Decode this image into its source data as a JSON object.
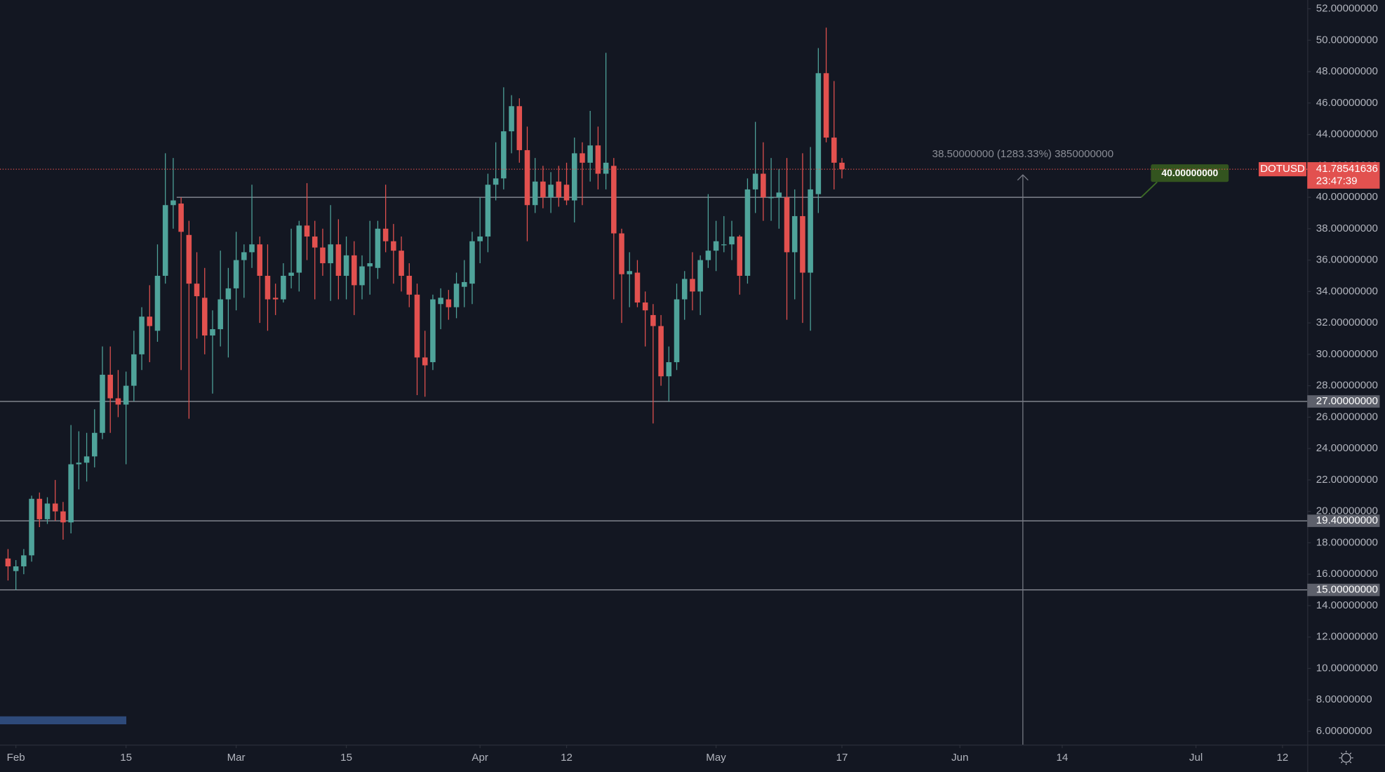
{
  "chart_data": {
    "type": "candlestick",
    "symbol": "DOTUSD",
    "up_color": "#4fa39a",
    "down_color": "#e2514f",
    "x": [
      -1,
      0,
      1,
      2,
      3,
      4,
      5,
      6,
      7,
      8,
      9,
      10,
      11,
      12,
      13,
      14,
      15,
      16,
      17,
      18,
      19,
      20,
      21,
      22,
      23,
      24,
      25,
      26,
      27,
      28,
      29,
      30,
      31,
      32,
      33,
      34,
      35,
      36,
      37,
      38,
      39,
      40,
      41,
      42,
      43,
      44,
      45,
      46,
      47,
      48,
      49,
      50,
      51,
      52,
      53,
      54,
      55,
      56,
      57,
      58,
      59,
      60,
      61,
      62,
      63,
      64,
      65,
      66,
      67,
      68,
      69,
      70,
      71,
      72,
      73,
      74,
      75,
      76,
      77,
      78,
      79,
      80,
      81,
      82,
      83,
      84,
      85,
      86,
      87,
      88,
      89,
      90,
      91,
      92,
      93,
      94,
      95,
      96,
      97,
      98,
      99,
      100,
      101,
      102,
      103,
      104,
      105
    ],
    "open": [
      17,
      16.2,
      16.5,
      17.2,
      20.8,
      19.5,
      20.5,
      20,
      19.3,
      23,
      23.1,
      23.5,
      25,
      28.7,
      27.2,
      26.8,
      28,
      30,
      32.4,
      31.5,
      35,
      39.5,
      39.6,
      37.6,
      34.5,
      33.6,
      31.2,
      31.6,
      33.5,
      34.2,
      36,
      36.5,
      37,
      35,
      33.6,
      33.5,
      35,
      35.2,
      38.2,
      37.5,
      36.8,
      35.8,
      37,
      35,
      36.3,
      34.4,
      35.6,
      35.5,
      38,
      37.2,
      36.6,
      35,
      33.8,
      29.8,
      29.5,
      33.2,
      33.5,
      33,
      34.3,
      34.5,
      37.2,
      37.5,
      40.8,
      41.2,
      44.2,
      45.8,
      43,
      39.5,
      41,
      40,
      41,
      40.8,
      39.8,
      42.8,
      42.2,
      43.3,
      41.5,
      42,
      37.7,
      35.1,
      35.2,
      33.3,
      32.5,
      31.8,
      28.6,
      29.5,
      33.5,
      34.8,
      34,
      36,
      36.6,
      37,
      37,
      37.5,
      35,
      40.5,
      41.5,
      40,
      40,
      40,
      36.5,
      38.8,
      35.2,
      40.2,
      47.9,
      43.8,
      42.2
    ],
    "high": [
      17.6,
      16.9,
      17.6,
      21,
      21.2,
      20.9,
      22,
      20.6,
      25.5,
      25.1,
      25,
      26.5,
      30.5,
      30.5,
      29,
      28.9,
      31.5,
      33,
      34.4,
      37,
      42.8,
      42.5,
      40,
      38.5,
      36.5,
      35.5,
      32.8,
      36.6,
      35.5,
      37.8,
      37,
      40.8,
      37.5,
      37,
      34.5,
      35.8,
      38,
      38.5,
      40.9,
      38.5,
      38,
      39.5,
      38.6,
      37.5,
      37.2,
      36.3,
      38.5,
      38.5,
      40.8,
      38.3,
      37.5,
      35.8,
      34.5,
      31.5,
      33.8,
      34.2,
      34.1,
      35.2,
      36,
      37.8,
      40,
      41.5,
      43.5,
      47,
      46.5,
      46.3,
      44.5,
      42.5,
      42,
      41.6,
      42,
      42.2,
      43.8,
      43.5,
      45.5,
      44.5,
      49.2,
      42.5,
      38,
      36.5,
      36,
      34,
      33.2,
      32.5,
      30.5,
      34.5,
      35.3,
      36.5,
      36.3,
      40.2,
      38.5,
      38.8,
      38.5,
      37.6,
      41.2,
      44.8,
      43.5,
      42.5,
      41.8,
      42.5,
      40.5,
      42.8,
      43.2,
      49.5,
      50.8,
      47.4,
      42.5
    ],
    "low": [
      15.6,
      15,
      16,
      16.8,
      19,
      19.2,
      19.4,
      18.2,
      18.6,
      21.4,
      21.9,
      22.8,
      24.6,
      25,
      26,
      23,
      27,
      29,
      29.5,
      30.8,
      34.5,
      38,
      29,
      25.9,
      31,
      30,
      27.5,
      30.5,
      29.8,
      32.8,
      33.6,
      35.5,
      32,
      31.5,
      32.5,
      33.3,
      34.2,
      34,
      36,
      33.5,
      35,
      33.4,
      33.5,
      33.5,
      32.5,
      33.5,
      33.8,
      34.8,
      36.5,
      34.5,
      34,
      33,
      27.4,
      27.3,
      29,
      31.6,
      32.2,
      32.3,
      33,
      33.2,
      35.8,
      36.5,
      39.8,
      40.5,
      42.8,
      42.2,
      37.2,
      39,
      39.3,
      39,
      39.4,
      39.5,
      38.4,
      39.5,
      41,
      40.5,
      40.5,
      33.5,
      32,
      33,
      33,
      30.5,
      25.6,
      28,
      27,
      29,
      32.2,
      32.8,
      32.5,
      35.5,
      35.3,
      36.5,
      36,
      33.8,
      34.5,
      39,
      38.5,
      38.5,
      38,
      32.2,
      33.5,
      32,
      31.5,
      39,
      43.5,
      40.5,
      41.2
    ],
    "close": [
      16.5,
      16.5,
      17.2,
      20.8,
      19.5,
      20.5,
      20,
      19.3,
      23,
      23.1,
      23.5,
      25,
      28.7,
      27.2,
      26.8,
      28,
      30,
      32.4,
      31.8,
      35,
      39.5,
      39.8,
      37.8,
      34.5,
      33.7,
      31.2,
      31.6,
      33.5,
      34.2,
      36,
      36.5,
      37,
      35,
      33.5,
      33.5,
      35,
      35.2,
      38.2,
      37.5,
      36.8,
      35.8,
      37,
      35,
      36.3,
      34.4,
      35.6,
      35.8,
      38,
      37.2,
      36.6,
      35,
      33.8,
      29.8,
      29.3,
      33.5,
      33.6,
      33,
      34.5,
      34.6,
      37.2,
      37.5,
      40.8,
      41.2,
      44.2,
      45.8,
      43,
      39.5,
      41,
      40,
      40.8,
      40,
      39.8,
      42.8,
      42.2,
      43.3,
      41.5,
      42.2,
      37.7,
      35.1,
      35.3,
      33.3,
      32.8,
      31.8,
      28.6,
      29.5,
      33.5,
      34.8,
      34,
      36,
      36.6,
      37.2,
      37,
      37.5,
      35,
      40.5,
      41.5,
      40,
      40,
      40.3,
      36.5,
      38.8,
      35.2,
      40.5,
      47.9,
      43.8,
      42.2,
      41.78541636
    ],
    "xlim": [
      -2.02,
      164.15
    ],
    "xticks": [
      {
        "value": 0,
        "label": "Feb"
      },
      {
        "value": 14,
        "label": "15"
      },
      {
        "value": 28,
        "label": "Mar"
      },
      {
        "value": 42,
        "label": "15"
      },
      {
        "value": 59,
        "label": "Apr"
      },
      {
        "value": 70,
        "label": "12"
      },
      {
        "value": 89,
        "label": "May"
      },
      {
        "value": 105,
        "label": "17"
      },
      {
        "value": 120,
        "label": "Jun"
      },
      {
        "value": 133,
        "label": "14"
      },
      {
        "value": 150,
        "label": "Jul"
      },
      {
        "value": 161,
        "label": "12"
      }
    ],
    "ylim": [
      5.15,
      52.56
    ],
    "yticks": [
      {
        "value": 6,
        "label": "6.00000000"
      },
      {
        "value": 8,
        "label": "8.00000000"
      },
      {
        "value": 10,
        "label": "10.00000000"
      },
      {
        "value": 12,
        "label": "12.00000000"
      },
      {
        "value": 14,
        "label": "14.00000000"
      },
      {
        "value": 16,
        "label": "16.00000000"
      },
      {
        "value": 18,
        "label": "18.00000000"
      },
      {
        "value": 20,
        "label": "20.00000000"
      },
      {
        "value": 22,
        "label": "22.00000000"
      },
      {
        "value": 24,
        "label": "24.00000000"
      },
      {
        "value": 26,
        "label": "26.00000000"
      },
      {
        "value": 28,
        "label": "28.00000000"
      },
      {
        "value": 30,
        "label": "30.00000000"
      },
      {
        "value": 32,
        "label": "32.00000000"
      },
      {
        "value": 34,
        "label": "34.00000000"
      },
      {
        "value": 36,
        "label": "36.00000000"
      },
      {
        "value": 38,
        "label": "38.00000000"
      },
      {
        "value": 40,
        "label": "40.00000000"
      },
      {
        "value": 42,
        "label": "42.00000000"
      },
      {
        "value": 44,
        "label": "44.00000000"
      },
      {
        "value": 46,
        "label": "46.00000000"
      },
      {
        "value": 48,
        "label": "48.00000000"
      },
      {
        "value": 50,
        "label": "50.00000000"
      },
      {
        "value": 52,
        "label": "52.00000000"
      }
    ],
    "levels": [
      {
        "value": 27,
        "label": "27.00000000"
      },
      {
        "value": 19.4,
        "label": "19.40000000"
      },
      {
        "value": 15,
        "label": "15.00000000"
      }
    ],
    "target": {
      "value": 40,
      "label": "40.00000000"
    },
    "last_price": {
      "value": 41.78541636,
      "label": "41.78541636"
    },
    "countdown": "23:47:39",
    "measure_label": "38.50000000 (1283.33%) 3850000000"
  }
}
